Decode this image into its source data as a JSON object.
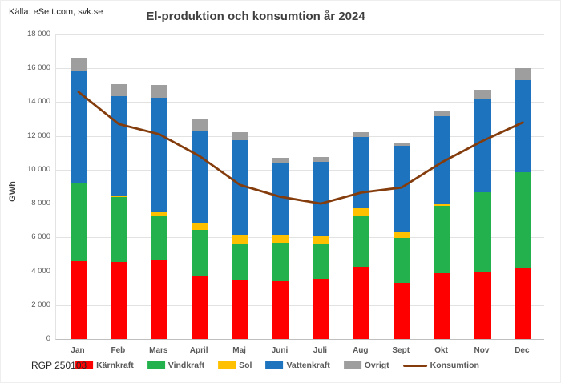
{
  "header": {
    "source": "Källa: eSett.com, svk.se",
    "title": "El-produktion och konsumtion år 2024"
  },
  "footer": {
    "note": "RGP 250103"
  },
  "chart_data": {
    "type": "bar",
    "stacked": true,
    "title": "El-produktion och konsumtion år 2024",
    "xlabel": "",
    "ylabel": "GWh",
    "ylim": [
      0,
      18000
    ],
    "ytick_step": 2000,
    "ytick_labels": [
      "0",
      "2 000",
      "4 000",
      "6 000",
      "8 000",
      "10 000",
      "12 000",
      "14 000",
      "16 000",
      "18 000"
    ],
    "grid": true,
    "legend_position": "bottom",
    "categories": [
      "Jan",
      "Feb",
      "Mars",
      "April",
      "Maj",
      "Juni",
      "Juli",
      "Aug",
      "Sept",
      "Okt",
      "Nov",
      "Dec"
    ],
    "series": [
      {
        "name": "Kärnkraft",
        "color": "#FF0000",
        "values": [
          4600,
          4550,
          4700,
          3700,
          3500,
          3400,
          3550,
          4250,
          3300,
          3900,
          4000,
          4200
        ]
      },
      {
        "name": "Vindkraft",
        "color": "#22B14C",
        "values": [
          4600,
          3850,
          2600,
          2750,
          2100,
          2300,
          2100,
          3050,
          2650,
          3950,
          4650,
          5650
        ]
      },
      {
        "name": "Sol",
        "color": "#FFC000",
        "values": [
          0,
          100,
          250,
          400,
          550,
          450,
          450,
          400,
          400,
          150,
          0,
          0
        ]
      },
      {
        "name": "Vattenkraft",
        "color": "#1E73BE",
        "values": [
          6600,
          5850,
          6700,
          5400,
          5600,
          4250,
          4350,
          4250,
          5050,
          5150,
          5550,
          5450
        ]
      },
      {
        "name": "Övrigt",
        "color": "#9E9E9E",
        "values": [
          850,
          700,
          750,
          800,
          450,
          300,
          300,
          250,
          200,
          300,
          550,
          700
        ]
      }
    ],
    "line_series": {
      "name": "Konsumtion",
      "color": "#843C0C",
      "values": [
        14600,
        12700,
        12100,
        10800,
        9100,
        8400,
        8000,
        8650,
        8950,
        10450,
        11700,
        12800
      ]
    }
  },
  "colors": {
    "gridline": "#e2e2e2",
    "axis": "#bfbfbf",
    "tick_text": "#595959",
    "title_text": "#3f3f3f"
  }
}
